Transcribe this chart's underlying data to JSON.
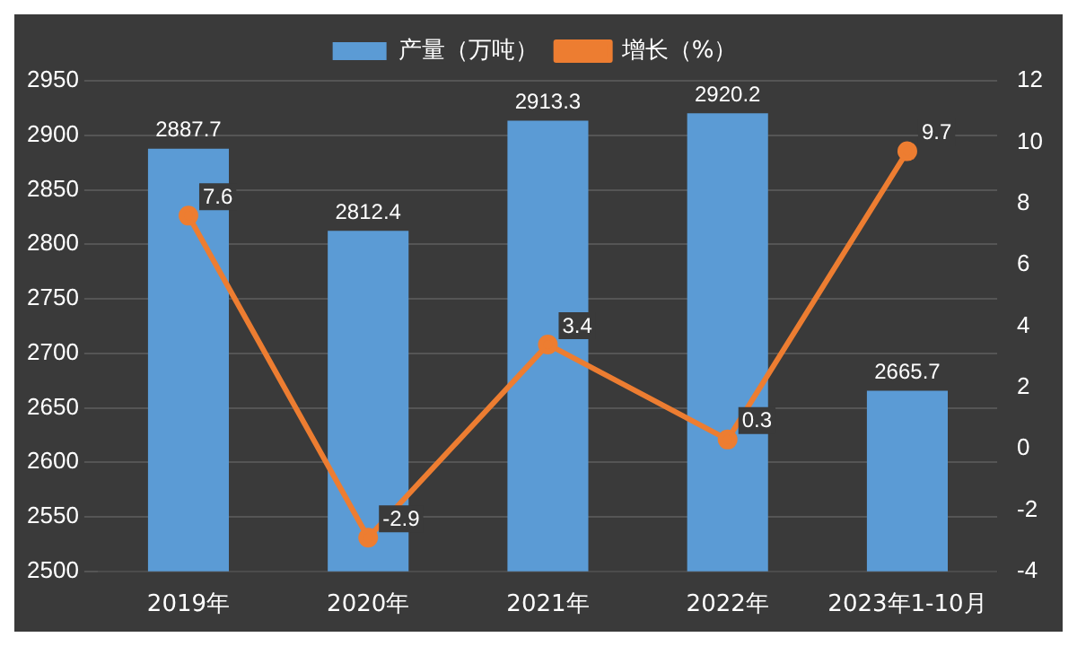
{
  "chart_data": {
    "type": "bar",
    "categories": [
      "2019年",
      "2020年",
      "2021年",
      "2022年",
      "2023年1-10月"
    ],
    "series": [
      {
        "name": "产量（万吨）",
        "color": "#5b9bd5",
        "values": [
          2887.7,
          2812.4,
          2913.3,
          2920.2,
          2665.7
        ]
      },
      {
        "name": "增长（%）",
        "type": "line",
        "axis": "y2",
        "color": "#ed7d31",
        "values": [
          7.6,
          -2.9,
          3.4,
          0.3,
          9.7
        ]
      }
    ],
    "ylim": [
      2500,
      2950
    ],
    "yticks": [
      2500,
      2550,
      2600,
      2650,
      2700,
      2750,
      2800,
      2850,
      2900,
      2950
    ],
    "y2lim": [
      -4,
      12
    ],
    "y2ticks": [
      -4,
      -2,
      0,
      2,
      4,
      6,
      8,
      10,
      12
    ],
    "grid": "y",
    "legend": "top",
    "marker": "circle",
    "data_labels": true
  }
}
